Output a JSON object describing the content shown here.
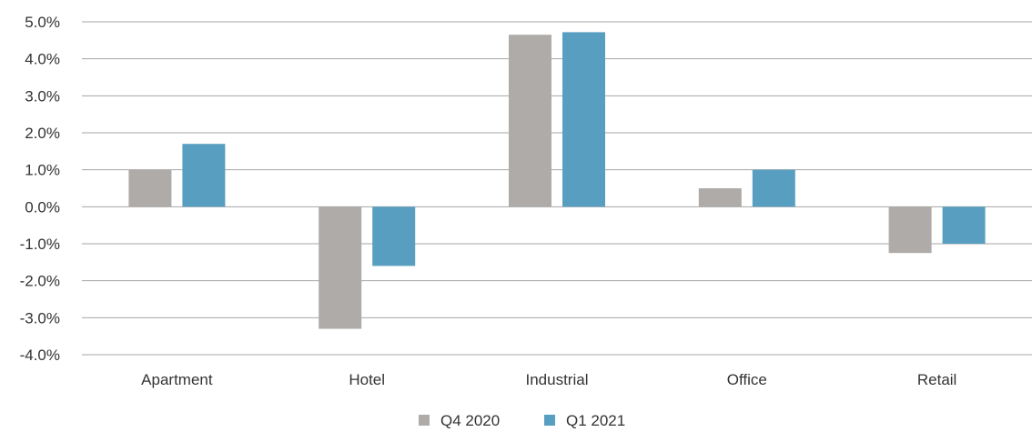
{
  "chart_data": {
    "type": "bar",
    "categories": [
      "Apartment",
      "Hotel",
      "Industrial",
      "Office",
      "Retail"
    ],
    "series": [
      {
        "name": "Q4 2020",
        "values": [
          1.0,
          -3.3,
          4.65,
          0.5,
          -1.25
        ],
        "color": "#aeaba8"
      },
      {
        "name": "Q1 2021",
        "values": [
          1.7,
          -1.6,
          4.72,
          1.0,
          -1.0
        ],
        "color": "#589ec0"
      }
    ],
    "ylim": [
      -4.0,
      5.0
    ],
    "yticks": [
      "5.0%",
      "4.0%",
      "3.0%",
      "2.0%",
      "1.0%",
      "0.0%",
      "-1.0%",
      "-2.0%",
      "-3.0%",
      "-4.0%"
    ],
    "ytick_values": [
      5,
      4,
      3,
      2,
      1,
      0,
      -1,
      -2,
      -3,
      -4
    ],
    "grid": true,
    "legend_position": "bottom-center",
    "gridline_color": "#a6a6a6"
  }
}
